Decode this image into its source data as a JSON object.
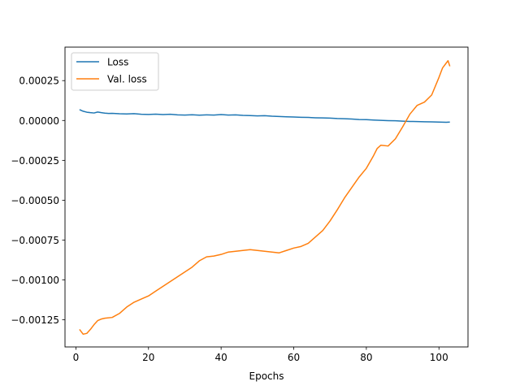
{
  "chart_data": {
    "type": "line",
    "title": "",
    "xlabel": "Epochs",
    "ylabel": "",
    "xlim": [
      -3,
      108
    ],
    "ylim": [
      -0.00142,
      0.00046
    ],
    "xticks": [
      0,
      20,
      40,
      60,
      80,
      100
    ],
    "xtick_labels": [
      "0",
      "20",
      "40",
      "60",
      "80",
      "100"
    ],
    "yticks": [
      0.00025,
      0.0,
      -0.00025,
      -0.0005,
      -0.00075,
      -0.001,
      -0.00125
    ],
    "ytick_labels": [
      "0.00025",
      "0.00000",
      "−0.00025",
      "−0.00050",
      "−0.00075",
      "−0.00100",
      "−0.00125"
    ],
    "grid": false,
    "legend_position": "top-left",
    "series": [
      {
        "name": "Loss",
        "color": "#1f77b4",
        "points": [
          [
            1,
            6.8e-05
          ],
          [
            2,
            5.8e-05
          ],
          [
            3,
            5.2e-05
          ],
          [
            4,
            4.9e-05
          ],
          [
            5,
            4.7e-05
          ],
          [
            6,
            5.3e-05
          ],
          [
            7,
            4.9e-05
          ],
          [
            8,
            4.6e-05
          ],
          [
            9,
            4.4e-05
          ],
          [
            10,
            4.5e-05
          ],
          [
            12,
            4.2e-05
          ],
          [
            14,
            4.1e-05
          ],
          [
            16,
            4.3e-05
          ],
          [
            18,
            3.9e-05
          ],
          [
            20,
            3.8e-05
          ],
          [
            22,
            4e-05
          ],
          [
            24,
            3.7e-05
          ],
          [
            26,
            3.9e-05
          ],
          [
            28,
            3.5e-05
          ],
          [
            30,
            3.4e-05
          ],
          [
            32,
            3.6e-05
          ],
          [
            34,
            3.3e-05
          ],
          [
            36,
            3.5e-05
          ],
          [
            38,
            3.4e-05
          ],
          [
            40,
            3.7e-05
          ],
          [
            42,
            3.4e-05
          ],
          [
            44,
            3.5e-05
          ],
          [
            46,
            3.2e-05
          ],
          [
            48,
            3.1e-05
          ],
          [
            50,
            2.9e-05
          ],
          [
            52,
            3e-05
          ],
          [
            54,
            2.7e-05
          ],
          [
            56,
            2.5e-05
          ],
          [
            58,
            2.3e-05
          ],
          [
            60,
            2.2e-05
          ],
          [
            62,
            2e-05
          ],
          [
            64,
            1.9e-05
          ],
          [
            66,
            1.7e-05
          ],
          [
            68,
            1.6e-05
          ],
          [
            70,
            1.5e-05
          ],
          [
            72,
            1.2e-05
          ],
          [
            74,
            1.1e-05
          ],
          [
            76,
            9e-06
          ],
          [
            78,
            6e-06
          ],
          [
            80,
            5e-06
          ],
          [
            82,
            3e-06
          ],
          [
            84,
            1e-06
          ],
          [
            86,
            -1e-06
          ],
          [
            88,
            -2e-06
          ],
          [
            90,
            -4e-06
          ],
          [
            92,
            -6e-06
          ],
          [
            94,
            -7e-06
          ],
          [
            96,
            -8e-06
          ],
          [
            98,
            -9e-06
          ],
          [
            100,
            -1e-05
          ],
          [
            102,
            -1.1e-05
          ],
          [
            103,
            -1e-05
          ]
        ]
      },
      {
        "name": "Val. loss",
        "color": "#ff7f0e",
        "points": [
          [
            1,
            -0.00131
          ],
          [
            2,
            -0.00134
          ],
          [
            3,
            -0.001335
          ],
          [
            4,
            -0.00131
          ],
          [
            5,
            -0.00128
          ],
          [
            6,
            -0.001255
          ],
          [
            7,
            -0.001245
          ],
          [
            8,
            -0.00124
          ],
          [
            10,
            -0.001235
          ],
          [
            12,
            -0.00121
          ],
          [
            14,
            -0.00117
          ],
          [
            16,
            -0.00114
          ],
          [
            18,
            -0.00112
          ],
          [
            20,
            -0.0011
          ],
          [
            22,
            -0.00107
          ],
          [
            24,
            -0.00104
          ],
          [
            26,
            -0.00101
          ],
          [
            28,
            -0.00098
          ],
          [
            30,
            -0.00095
          ],
          [
            32,
            -0.00092
          ],
          [
            34,
            -0.00088
          ],
          [
            36,
            -0.000855
          ],
          [
            38,
            -0.00085
          ],
          [
            40,
            -0.00084
          ],
          [
            42,
            -0.000825
          ],
          [
            44,
            -0.00082
          ],
          [
            46,
            -0.000815
          ],
          [
            48,
            -0.00081
          ],
          [
            50,
            -0.000815
          ],
          [
            52,
            -0.00082
          ],
          [
            54,
            -0.000825
          ],
          [
            56,
            -0.00083
          ],
          [
            58,
            -0.000815
          ],
          [
            60,
            -0.0008
          ],
          [
            62,
            -0.00079
          ],
          [
            64,
            -0.00077
          ],
          [
            66,
            -0.00073
          ],
          [
            68,
            -0.00069
          ],
          [
            70,
            -0.00063
          ],
          [
            72,
            -0.00056
          ],
          [
            74,
            -0.000485
          ],
          [
            76,
            -0.00042
          ],
          [
            78,
            -0.000355
          ],
          [
            80,
            -0.0003
          ],
          [
            82,
            -0.00022
          ],
          [
            83,
            -0.000175
          ],
          [
            84,
            -0.000155
          ],
          [
            86,
            -0.00016
          ],
          [
            88,
            -0.000115
          ],
          [
            90,
            -4e-05
          ],
          [
            92,
            4e-05
          ],
          [
            94,
            9.5e-05
          ],
          [
            96,
            0.000115
          ],
          [
            98,
            0.00016
          ],
          [
            100,
            0.00027
          ],
          [
            101,
            0.00033
          ],
          [
            102,
            0.00036
          ],
          [
            102.5,
            0.000375
          ],
          [
            103,
            0.00034
          ]
        ]
      }
    ]
  }
}
